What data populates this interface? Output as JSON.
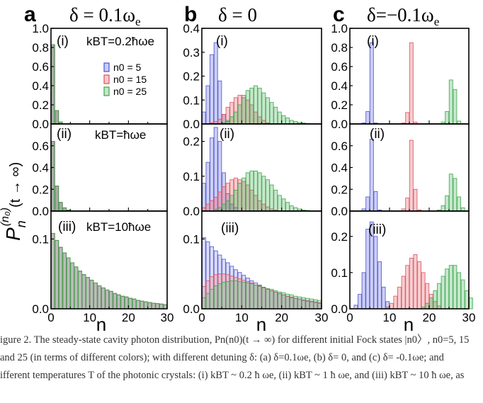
{
  "figure": {
    "columns": [
      {
        "letter": "a",
        "header": "δ = 0.1ω"
      },
      {
        "letter": "b",
        "header": "δ = 0"
      },
      {
        "letter": "c",
        "header": "δ=−0.1ω"
      }
    ],
    "header_subscript": "e",
    "y_axis_label": "P",
    "y_axis_label_sup": "(n₀)",
    "y_axis_label_sub": "n",
    "y_axis_label_rest": "(t → ∞)",
    "x_axis_label": "n",
    "row_tags": [
      "(i)",
      "(ii)",
      "(iii)"
    ],
    "temperature_labels": [
      "kBT=0.2ħωe",
      "kBT=ħωe",
      "kBT=10ħωe"
    ],
    "legend_entries": [
      "n0 = 5",
      "n0 = 15",
      "n0 = 25"
    ]
  },
  "caption": {
    "line1": "igure 2. The steady-state cavity photon distribution, Pn(n0)(t → ∞) for different initial Fock states |n0〉, n0=5, 15",
    "line2": "and 25 (in terms of different colors); with different detuning δ: (a) δ=0.1ωe, (b) δ= 0, and (c) δ= -0.1ωe; and",
    "line3": "ifferent temperatures T of the photonic crystals: (i) kBT ~ 0.2 ħ ωe, (ii) kBT ~ 1 ħ ωe, and (iii) kBT ~ 10 ħ ωe, as"
  },
  "chart_data": {
    "type": "bar",
    "title": "",
    "xlabel": "n",
    "ylabel": "Pn(n0)(t → ∞)",
    "xlim": [
      0,
      30
    ],
    "colors": {
      "n0=5": "#4a52d6",
      "n0=15": "#e0505a",
      "n0=25": "#3aa84a"
    },
    "panels": [
      {
        "id": "a-i",
        "ylim": [
          0,
          1.0
        ],
        "yticks": [
          0.0,
          0.2,
          0.4,
          0.6,
          0.8,
          1.0
        ],
        "ytick_labels": [
          "0.0",
          "0.2",
          "0.4",
          "0.6",
          "0.8",
          "1.0"
        ],
        "series": [
          {
            "name": "n0 = 5",
            "start": 0,
            "values": [
              0.83,
              0.14,
              0.02
            ]
          },
          {
            "name": "n0 = 15",
            "start": 0,
            "values": [
              0.83,
              0.14,
              0.02
            ]
          },
          {
            "name": "n0 = 25",
            "start": 0,
            "values": [
              0.83,
              0.14,
              0.02
            ]
          }
        ]
      },
      {
        "id": "a-ii",
        "ylim": [
          0,
          0.8
        ],
        "yticks": [
          0.0,
          0.2,
          0.4,
          0.6
        ],
        "ytick_labels": [
          "0.0",
          "0.2",
          "0.4",
          "0.6"
        ],
        "series": [
          {
            "name": "n0 = 5",
            "start": 0,
            "values": [
              0.64,
              0.23,
              0.08,
              0.03,
              0.01
            ]
          },
          {
            "name": "n0 = 15",
            "start": 0,
            "values": [
              0.64,
              0.23,
              0.08,
              0.03,
              0.01
            ]
          },
          {
            "name": "n0 = 25",
            "start": 0,
            "values": [
              0.64,
              0.23,
              0.08,
              0.03,
              0.01
            ]
          }
        ]
      },
      {
        "id": "a-iii",
        "ylim": [
          0,
          0.14
        ],
        "yticks": [
          0.0,
          0.1
        ],
        "ytick_labels": [
          "0.0",
          "0.1"
        ],
        "series": [
          {
            "name": "n0 = 5",
            "start": 0,
            "values": [
              0.108,
              0.098,
              0.088,
              0.08,
              0.073,
              0.066,
              0.06,
              0.054,
              0.049,
              0.045,
              0.041,
              0.037,
              0.033,
              0.03,
              0.027,
              0.025,
              0.022,
              0.02,
              0.018,
              0.017,
              0.015,
              0.014,
              0.012,
              0.011,
              0.01,
              0.009,
              0.008,
              0.0075,
              0.0068,
              0.006
            ]
          },
          {
            "name": "n0 = 15",
            "start": 0,
            "values": [
              0.108,
              0.098,
              0.088,
              0.08,
              0.073,
              0.066,
              0.06,
              0.054,
              0.049,
              0.045,
              0.041,
              0.037,
              0.033,
              0.03,
              0.027,
              0.025,
              0.022,
              0.02,
              0.018,
              0.017,
              0.015,
              0.014,
              0.012,
              0.011,
              0.01,
              0.009,
              0.008,
              0.0075,
              0.0068,
              0.006
            ]
          },
          {
            "name": "n0 = 25",
            "start": 0,
            "values": [
              0.108,
              0.098,
              0.088,
              0.08,
              0.073,
              0.066,
              0.06,
              0.054,
              0.049,
              0.045,
              0.041,
              0.037,
              0.033,
              0.03,
              0.027,
              0.025,
              0.022,
              0.02,
              0.018,
              0.017,
              0.015,
              0.014,
              0.012,
              0.011,
              0.01,
              0.009,
              0.008,
              0.0075,
              0.0068,
              0.006
            ]
          }
        ]
      },
      {
        "id": "b-i",
        "ylim": [
          0,
          0.4
        ],
        "yticks": [
          0.0,
          0.1,
          0.2,
          0.3,
          0.4
        ],
        "ytick_labels": [
          "0.0",
          "0.1",
          "0.2",
          "0.3",
          "0.4"
        ],
        "series": [
          {
            "name": "n0 = 5",
            "start": 0,
            "values": [
              0.05,
              0.16,
              0.29,
              0.34,
              0.18,
              0.04,
              0.01
            ]
          },
          {
            "name": "n0 = 15",
            "start": 2,
            "values": [
              0.005,
              0.01,
              0.02,
              0.04,
              0.07,
              0.09,
              0.11,
              0.12,
              0.12,
              0.1,
              0.08,
              0.05,
              0.03,
              0.015,
              0.005
            ]
          },
          {
            "name": "n0 = 25",
            "start": 5,
            "values": [
              0.005,
              0.015,
              0.03,
              0.05,
              0.08,
              0.11,
              0.14,
              0.15,
              0.16,
              0.15,
              0.13,
              0.11,
              0.09,
              0.07,
              0.05,
              0.035,
              0.025,
              0.015,
              0.01,
              0.006,
              0.004,
              0.002
            ]
          }
        ]
      },
      {
        "id": "b-ii",
        "ylim": [
          0,
          0.25
        ],
        "yticks": [
          0.0,
          0.1,
          0.2
        ],
        "ytick_labels": [
          "0.0",
          "0.1",
          "0.2"
        ],
        "series": [
          {
            "name": "n0 = 5",
            "start": 0,
            "values": [
              0.08,
              0.14,
              0.21,
              0.24,
              0.2,
              0.11,
              0.05,
              0.02,
              0.01
            ]
          },
          {
            "name": "n0 = 15",
            "start": 0,
            "values": [
              0.01,
              0.02,
              0.03,
              0.04,
              0.055,
              0.07,
              0.08,
              0.09,
              0.095,
              0.09,
              0.085,
              0.075,
              0.06,
              0.045,
              0.03,
              0.02,
              0.012,
              0.006,
              0.003
            ]
          },
          {
            "name": "n0 = 25",
            "start": 3,
            "values": [
              0.005,
              0.01,
              0.02,
              0.03,
              0.045,
              0.06,
              0.08,
              0.095,
              0.11,
              0.115,
              0.115,
              0.11,
              0.1,
              0.09,
              0.075,
              0.06,
              0.045,
              0.035,
              0.025,
              0.015,
              0.01,
              0.006,
              0.003,
              0.002
            ]
          }
        ]
      },
      {
        "id": "b-iii",
        "ylim": [
          0,
          0.14
        ],
        "yticks": [
          0.0,
          0.1
        ],
        "ytick_labels": [
          "0.0",
          "0.1"
        ],
        "series": [
          {
            "name": "n0 = 5",
            "start": 0,
            "values": [
              0.102,
              0.096,
              0.089,
              0.083,
              0.077,
              0.071,
              0.066,
              0.061,
              0.056,
              0.052,
              0.048,
              0.044,
              0.04,
              0.037,
              0.034,
              0.031,
              0.028,
              0.026,
              0.024,
              0.022,
              0.02,
              0.018,
              0.016,
              0.015,
              0.014,
              0.012,
              0.011,
              0.01,
              0.009,
              0.008
            ]
          },
          {
            "name": "n0 = 15",
            "start": 0,
            "values": [
              0.032,
              0.04,
              0.046,
              0.049,
              0.05,
              0.05,
              0.049,
              0.047,
              0.045,
              0.043,
              0.041,
              0.039,
              0.037,
              0.034,
              0.032,
              0.03,
              0.028,
              0.026,
              0.024,
              0.022,
              0.02,
              0.018,
              0.017,
              0.015,
              0.014,
              0.013,
              0.012,
              0.011,
              0.01,
              0.009
            ]
          },
          {
            "name": "n0 = 25",
            "start": 0,
            "values": [
              0.016,
              0.022,
              0.028,
              0.033,
              0.036,
              0.038,
              0.039,
              0.04,
              0.04,
              0.039,
              0.038,
              0.037,
              0.036,
              0.034,
              0.033,
              0.031,
              0.029,
              0.028,
              0.026,
              0.024,
              0.023,
              0.021,
              0.02,
              0.018,
              0.017,
              0.016,
              0.015,
              0.014,
              0.013,
              0.012
            ]
          }
        ]
      },
      {
        "id": "c-i",
        "ylim": [
          0,
          1.0
        ],
        "yticks": [
          0.0,
          0.2,
          0.4,
          0.6,
          0.8,
          1.0
        ],
        "ytick_labels": [
          "0.0",
          "0.2",
          "0.4",
          "0.6",
          "0.8",
          "1.0"
        ],
        "series": [
          {
            "name": "n0 = 5",
            "start": 3,
            "values": [
              0.01,
              0.13,
              0.85,
              0.01
            ]
          },
          {
            "name": "n0 = 15",
            "start": 13,
            "values": [
              0.01,
              0.12,
              0.85,
              0.02
            ]
          },
          {
            "name": "n0 = 25",
            "start": 23,
            "values": [
              0.02,
              0.13,
              0.46,
              0.36,
              0.03
            ]
          }
        ]
      },
      {
        "id": "c-ii",
        "ylim": [
          0,
          0.8
        ],
        "yticks": [
          0.0,
          0.2,
          0.4,
          0.6
        ],
        "ytick_labels": [
          "0.0",
          "0.2",
          "0.4",
          "0.6"
        ],
        "series": [
          {
            "name": "n0 = 5",
            "start": 3,
            "values": [
              0.02,
              0.13,
              0.66,
              0.18,
              0.01
            ]
          },
          {
            "name": "n0 = 15",
            "start": 13,
            "values": [
              0.02,
              0.12,
              0.65,
              0.2,
              0.01
            ]
          },
          {
            "name": "n0 = 25",
            "start": 22,
            "values": [
              0.01,
              0.05,
              0.14,
              0.34,
              0.3,
              0.13,
              0.03
            ]
          }
        ]
      },
      {
        "id": "c-iii",
        "ylim": [
          0,
          0.27
        ],
        "yticks": [
          0.0,
          0.1,
          0.2
        ],
        "ytick_labels": [
          "0.0",
          "0.1",
          "0.2"
        ],
        "series": [
          {
            "name": "n0 = 5",
            "start": 1,
            "values": [
              0.01,
              0.04,
              0.1,
              0.22,
              0.24,
              0.2,
              0.13,
              0.06,
              0.02
            ]
          },
          {
            "name": "n0 = 15",
            "start": 9,
            "values": [
              0.005,
              0.015,
              0.035,
              0.06,
              0.09,
              0.12,
              0.14,
              0.15,
              0.13,
              0.1,
              0.07,
              0.04,
              0.02,
              0.008
            ]
          },
          {
            "name": "n0 = 25",
            "start": 18,
            "values": [
              0.005,
              0.015,
              0.03,
              0.05,
              0.07,
              0.09,
              0.11,
              0.12,
              0.12,
              0.1,
              0.08,
              0.05,
              0.03
            ]
          }
        ]
      }
    ]
  }
}
